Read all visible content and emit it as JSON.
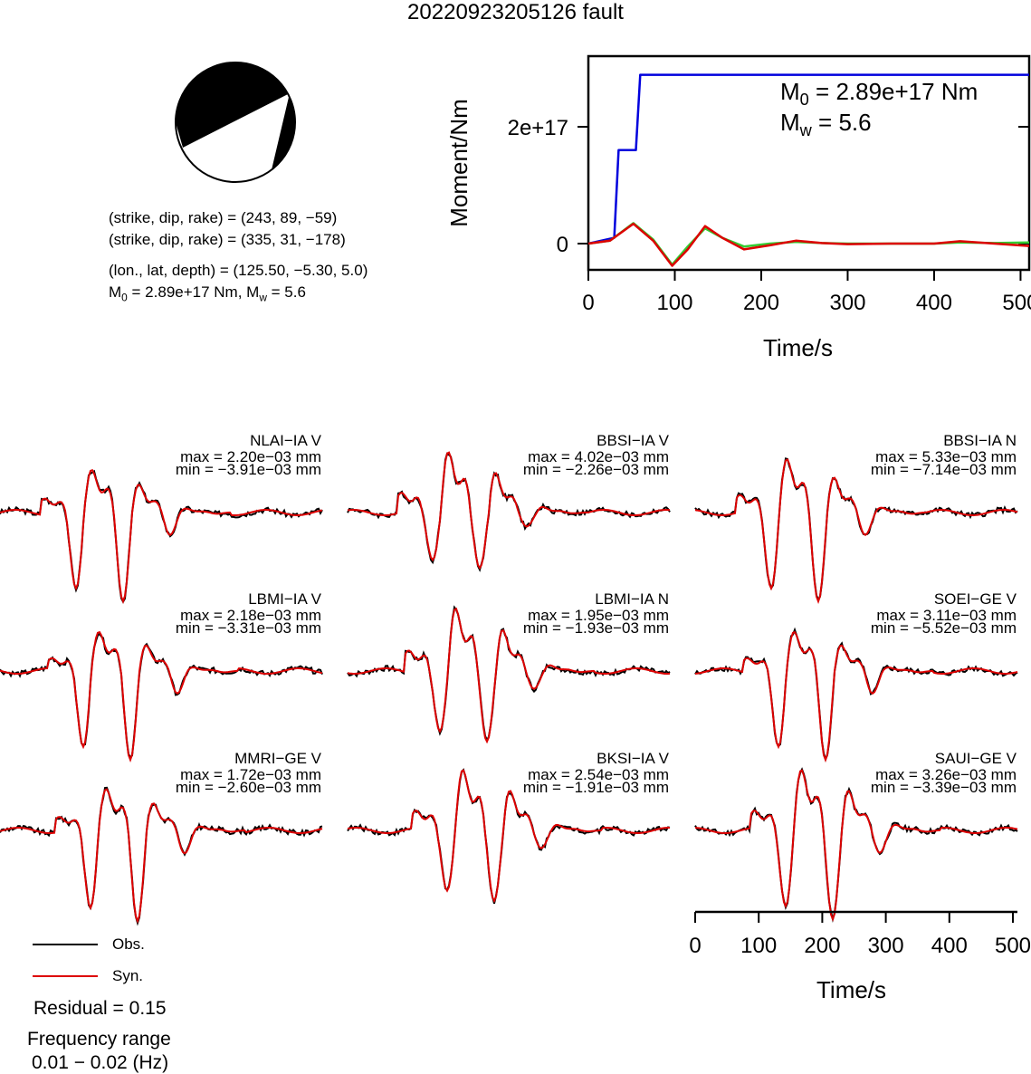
{
  "title": "20220923205126 fault",
  "focal_mechanism": {
    "line1": "(strike, dip, rake) = (243, 89, −59)",
    "line2": "(strike, dip, rake) = (335, 31, −178)",
    "line3": "(lon., lat, depth) = (125.50, −5.30, 5.0)",
    "m0_text": "= 2.89e+17 Nm, M",
    "mw_text": " = 5.6"
  },
  "moment_plot": {
    "ylabel": "Moment/Nm",
    "xlabel": "Time/s",
    "m0_value": "= 2.89e+17 Nm",
    "mw_value": "= 5.6",
    "colors": {
      "cumulative": "#0000dd",
      "rate_a": "#dd0000",
      "rate_b": "#33cc33"
    }
  },
  "chart_data": [
    {
      "type": "line",
      "xlabel": "Time/s",
      "ylabel": "Moment/Nm",
      "xlim": [
        0,
        510
      ],
      "x_ticks": [
        "0",
        "100",
        "200",
        "300",
        "400",
        "500"
      ],
      "y_ticks": [
        "0",
        "2e+17"
      ],
      "series": [
        {
          "name": "cumulative moment",
          "x": [
            0,
            30,
            35,
            55,
            60,
            510
          ],
          "y": [
            0.0,
            1e+16,
            1.6e+17,
            1.6e+17,
            2.89e+17,
            2.89e+17
          ]
        },
        {
          "name": "moment rate (red)",
          "x": [
            0,
            25,
            52,
            75,
            97,
            115,
            135,
            155,
            180,
            210,
            240,
            270,
            300,
            350,
            400,
            430,
            470,
            510
          ],
          "y": [
            0.0,
            5000000000000000.0,
            3.4e+16,
            5000000000000000.0,
            -3.8e+16,
            -1e+16,
            3e+16,
            1e+16,
            -1e+16,
            -3000000000000000.0,
            5000000000000000.0,
            1000000000000000.0,
            -1000000000000000.0,
            0.0,
            0.0,
            4000000000000000.0,
            0.0,
            -4000000000000000.0
          ]
        },
        {
          "name": "moment rate (green)",
          "x": [
            0,
            25,
            52,
            75,
            97,
            115,
            135,
            155,
            180,
            210,
            240,
            270,
            300,
            350,
            400,
            430,
            470,
            510
          ],
          "y": [
            0.0,
            5000000000000000.0,
            3.5e+16,
            7000000000000000.0,
            -3.6e+16,
            -5000000000000000.0,
            2.6e+16,
            1e+16,
            -5000000000000000.0,
            0.0,
            3000000000000000.0,
            1000000000000000.0,
            0.0,
            0.0,
            0.0,
            2000000000000000.0,
            1000000000000000.0,
            2000000000000000.0
          ]
        }
      ]
    },
    {
      "type": "line",
      "xlabel": "Time/s",
      "xlim": [
        0,
        510
      ],
      "x_ticks": [
        "0",
        "100",
        "200",
        "300",
        "400",
        "500"
      ],
      "traces": [
        {
          "station": "NLAI−IA V",
          "max": "max = 2.20e−03 mm",
          "min": "min = −3.91e−03 mm"
        },
        {
          "station": "BBSI−IA V",
          "max": "max = 4.02e−03 mm",
          "min": "min = −2.26e−03 mm"
        },
        {
          "station": "BBSI−IA N",
          "max": "max = 5.33e−03 mm",
          "min": "min = −7.14e−03 mm"
        },
        {
          "station": "LBMI−IA V",
          "max": "max = 2.18e−03 mm",
          "min": "min = −3.31e−03 mm"
        },
        {
          "station": "LBMI−IA N",
          "max": "max = 1.95e−03 mm",
          "min": "min = −1.93e−03 mm"
        },
        {
          "station": "SOEI−GE V",
          "max": "max = 3.11e−03 mm",
          "min": "min = −5.52e−03 mm"
        },
        {
          "station": "MMRI−GE V",
          "max": "max = 1.72e−03 mm",
          "min": "min = −2.60e−03 mm"
        },
        {
          "station": "BKSI−IA V",
          "max": "max = 2.54e−03 mm",
          "min": "min = −1.91e−03 mm"
        },
        {
          "station": "SAUI−GE V",
          "max": "max = 3.26e−03 mm",
          "min": "min = −3.39e−03 mm"
        }
      ]
    }
  ],
  "legend": {
    "obs": "Obs.",
    "syn": "Syn.",
    "obs_color": "#000000",
    "syn_color": "#dd0000"
  },
  "residual": "Residual = 0.15",
  "freq_label": "Frequency range",
  "freq_value": "0.01 − 0.02 (Hz)"
}
